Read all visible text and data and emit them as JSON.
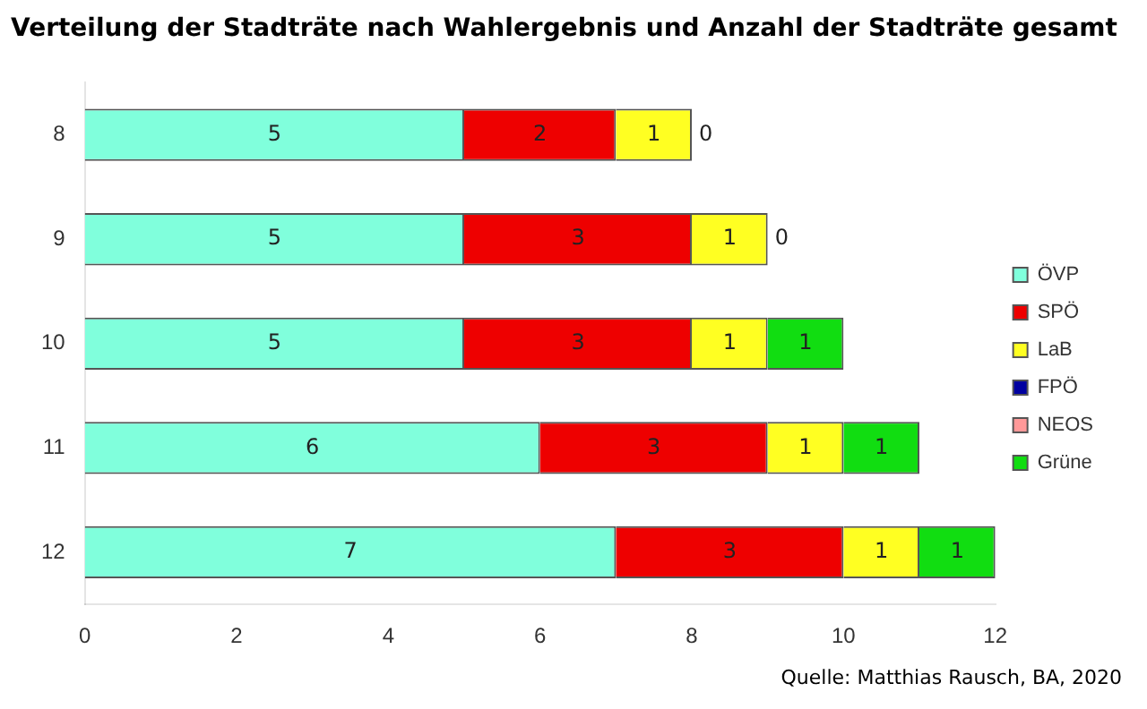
{
  "chart_data": {
    "type": "bar",
    "orientation": "horizontal",
    "stacked": true,
    "title": "Verteilung der Stadträte nach Wahlergebnis und Anzahl der Stadträte gesamt",
    "categories": [
      "8",
      "9",
      "10",
      "11",
      "12"
    ],
    "series": [
      {
        "name": "ÖVP",
        "color": "#80ffdc",
        "values": [
          5,
          5,
          5,
          6,
          7
        ],
        "value_labels": [
          "5",
          "5",
          "5",
          "6",
          "7"
        ]
      },
      {
        "name": "SPÖ",
        "color": "#ee0000",
        "values": [
          2,
          3,
          3,
          3,
          3
        ],
        "value_labels": [
          "2",
          "3",
          "3",
          "3",
          "3"
        ]
      },
      {
        "name": "LaB",
        "color": "#ffff22",
        "values": [
          1,
          1,
          1,
          1,
          1
        ],
        "value_labels": [
          "1",
          "1",
          "1",
          "1",
          "1"
        ]
      },
      {
        "name": "FPÖ",
        "color": "#0000a0",
        "values": [
          0,
          0,
          0,
          0,
          0
        ]
      },
      {
        "name": "NEOS",
        "color": "#ff9999",
        "values": [
          0,
          0,
          0,
          0,
          0
        ]
      },
      {
        "name": "Grüne",
        "color": "#11dd11",
        "values": [
          0,
          0,
          1,
          1,
          1
        ],
        "value_labels": [
          "0",
          "0",
          "1",
          "1",
          "1"
        ]
      }
    ],
    "xlim": [
      0,
      12
    ],
    "xticks": [
      0,
      2,
      4,
      6,
      8,
      10,
      12
    ],
    "grid": false,
    "legend": "right",
    "annotations": [
      "Quelle: Matthias Rausch, BA, 2020"
    ]
  }
}
